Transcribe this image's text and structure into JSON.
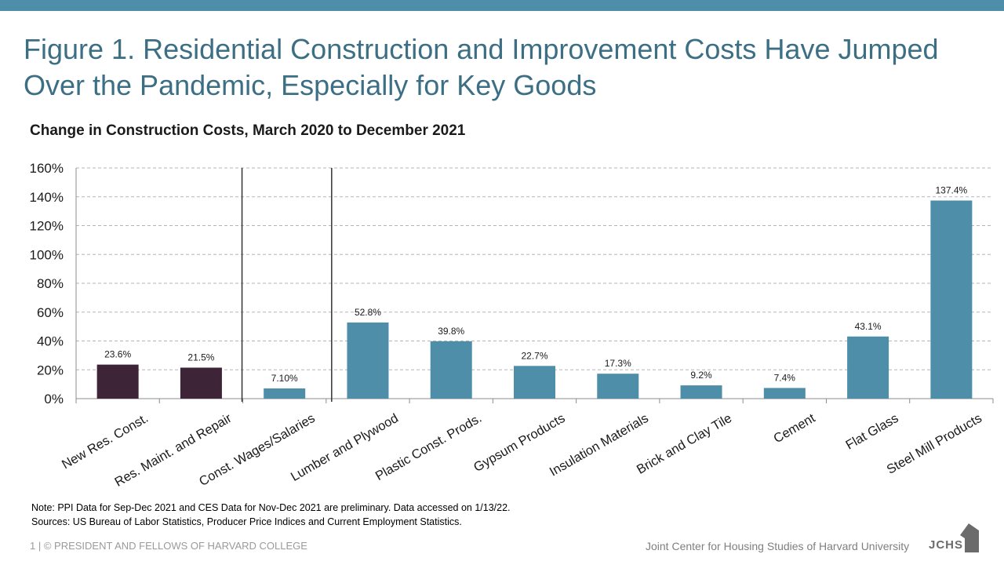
{
  "header": {
    "title": "Figure 1. Residential Construction and Improvement Costs Have Jumped Over the Pandemic, Especially for Key Goods"
  },
  "chart_data": {
    "type": "bar",
    "title": "Change in Construction Costs, March 2020 to December 2021",
    "xlabel": "",
    "ylabel": "",
    "ylim": [
      0,
      160
    ],
    "y_ticks": [
      "0%",
      "20%",
      "40%",
      "60%",
      "80%",
      "100%",
      "120%",
      "140%",
      "160%"
    ],
    "grid": true,
    "categories": [
      "New Res. Const.",
      "Res. Maint. and Repair",
      "Const. Wages/Salaries",
      "Lumber and Plywood",
      "Plastic Const. Prods.",
      "Gypsum Products",
      "Insulation Materials",
      "Brick and Clay Tile",
      "Cement",
      "Flat Glass",
      "Steel Mill Products"
    ],
    "values": [
      23.6,
      21.5,
      7.1,
      52.8,
      39.8,
      22.7,
      17.3,
      9.2,
      7.4,
      43.1,
      137.4
    ],
    "data_labels": [
      "23.6%",
      "21.5%",
      "7.10%",
      "52.8%",
      "39.8%",
      "22.7%",
      "17.3%",
      "9.2%",
      "7.4%",
      "43.1%",
      "137.4%"
    ],
    "bar_colors": [
      "#3d2436",
      "#3d2436",
      "#4e8ea8",
      "#4e8ea8",
      "#4e8ea8",
      "#4e8ea8",
      "#4e8ea8",
      "#4e8ea8",
      "#4e8ea8",
      "#4e8ea8",
      "#4e8ea8"
    ]
  },
  "notes": {
    "note": "Note: PPI Data for Sep-Dec 2021 and CES Data for Nov-Dec 2021 are preliminary. Data accessed on 1/13/22.",
    "sources": "Sources: US Bureau of Labor Statistics, Producer Price Indices and Current Employment Statistics."
  },
  "footer": {
    "left": "1 | © PRESIDENT AND FELLOWS OF HARVARD COLLEGE",
    "right": "Joint Center for Housing Studies of Harvard University",
    "logo_text": "JCHS"
  },
  "colors": {
    "accent": "#4e8ea8",
    "title": "#3d6f84",
    "highlight_bar": "#3d2436"
  }
}
